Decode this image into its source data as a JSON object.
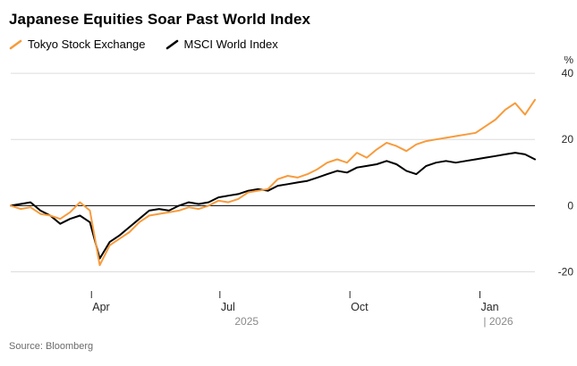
{
  "page": {
    "title": "Japanese Equities Soar Past World Index",
    "source": "Source: Bloomberg"
  },
  "legend": {
    "items": [
      {
        "label": "Tokyo Stock Exchange",
        "color": "#F79B3C"
      },
      {
        "label": "MSCI World Index",
        "color": "#000000"
      }
    ]
  },
  "chart_data": {
    "type": "line",
    "title": "Japanese Equities Soar Past World Index",
    "ylabel": "%",
    "ylim": [
      -25,
      43
    ],
    "y_ticks": [
      -20,
      0,
      20,
      40
    ],
    "zero_line": 0,
    "grid": true,
    "legend_position": "top-left",
    "x_ticks": [
      {
        "label": "Apr",
        "pos": 0.154
      },
      {
        "label": "Jul",
        "pos": 0.399
      },
      {
        "label": "Oct",
        "pos": 0.647
      },
      {
        "label": "Jan",
        "pos": 0.895
      }
    ],
    "year_labels": [
      {
        "label": "2025",
        "pos": 0.45
      },
      {
        "label": "| 2026",
        "pos": 0.93
      }
    ],
    "colors": {
      "grid": "#dcdcdc",
      "zero_line": "#000000",
      "axis_text": "#262626",
      "year_text": "#8a8a8a"
    },
    "series": [
      {
        "name": "Tokyo Stock Exchange",
        "color": "#F79B3C",
        "values": [
          0,
          -1,
          -0.5,
          -2.5,
          -3,
          -4,
          -2,
          1,
          -1.5,
          -18,
          -12,
          -10,
          -8,
          -5,
          -3,
          -2.5,
          -2,
          -1.5,
          -0.5,
          -1,
          0,
          1.5,
          1,
          2,
          4,
          4.5,
          5,
          8,
          9,
          8.5,
          9.5,
          11,
          13,
          14,
          13,
          16,
          14.5,
          17,
          19,
          18,
          16.5,
          18.5,
          19.5,
          20,
          20.5,
          21,
          21.5,
          22,
          24,
          26,
          29,
          31,
          27.5,
          32
        ]
      },
      {
        "name": "MSCI World Index",
        "color": "#000000",
        "values": [
          0,
          0.5,
          1,
          -1.5,
          -3,
          -5.5,
          -4,
          -3,
          -5,
          -16,
          -11,
          -9,
          -6.5,
          -4,
          -1.5,
          -1,
          -1.5,
          0,
          1,
          0.5,
          1,
          2.5,
          3,
          3.5,
          4.5,
          5,
          4.5,
          6,
          6.5,
          7,
          7.5,
          8.5,
          9.5,
          10.5,
          10,
          11.5,
          12,
          12.5,
          13.5,
          12.5,
          10.5,
          9.5,
          12,
          13,
          13.5,
          13,
          13.5,
          14,
          14.5,
          15,
          15.5,
          16,
          15.5,
          14
        ]
      }
    ]
  }
}
